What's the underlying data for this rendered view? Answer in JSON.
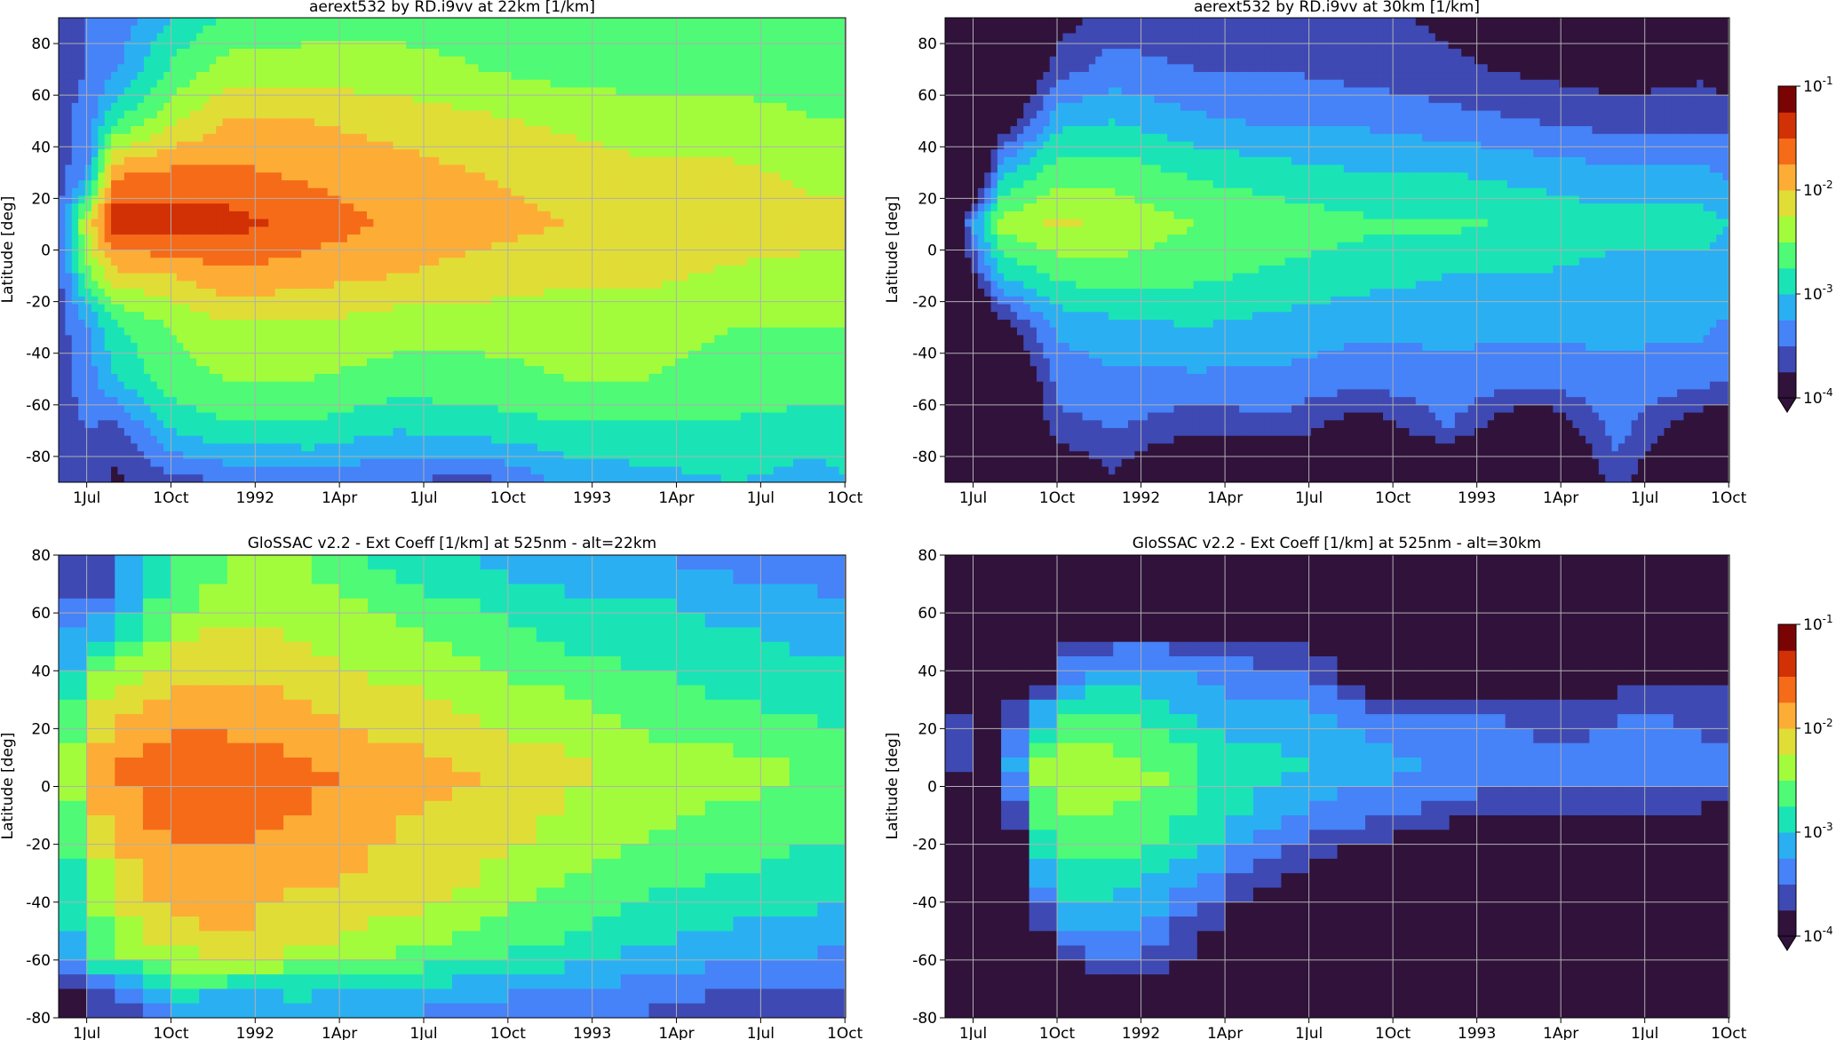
{
  "figure": {
    "colormap": [
      "#30123b",
      "#3e49b3",
      "#4682f8",
      "#2ab0f2",
      "#1ae4b6",
      "#4efa76",
      "#a2fc3c",
      "#e1dd37",
      "#fdad35",
      "#f66b18",
      "#d23105",
      "#7a0403"
    ],
    "under_color": "#30123b"
  },
  "chart_data": [
    {
      "type": "heatmap",
      "title": "aerext532 by RD.i9vv at 22km [1/km]",
      "ylabel": "Latitude [deg]",
      "xlabel": "",
      "ylim": [
        -90,
        90
      ],
      "yticks": [
        -80,
        -60,
        -40,
        -20,
        0,
        20,
        40,
        60,
        80
      ],
      "xticklabels": [
        "1Jul",
        "1Oct",
        "1992",
        "1Apr",
        "1Jul",
        "1Oct",
        "1993",
        "1Apr",
        "1Jul",
        "1Oct"
      ],
      "xrange": [
        "1991-06-01",
        "1993-10-01"
      ],
      "grid": true,
      "colorbar": false,
      "value_unit": "log10 extinction [1/km]",
      "field": {
        "time_months": [
          0,
          1,
          2,
          4,
          6,
          9,
          12,
          15,
          18,
          21,
          24,
          27,
          28
        ],
        "latitude": [
          -90,
          -70,
          -50,
          -30,
          -10,
          10,
          30,
          50,
          70,
          90
        ],
        "values": [
          [
            -3.6,
            -3.6,
            -3.6,
            -3.6,
            -3.6,
            -3.6,
            -3.6,
            -3.6,
            -3.6,
            -3.6
          ],
          [
            -3.5,
            -3.5,
            -3.4,
            -3.3,
            -2.6,
            -2.2,
            -3.3,
            -3.4,
            -3.5,
            -3.5
          ],
          [
            -3.8,
            -3.6,
            -3.0,
            -2.8,
            -2.1,
            -1.3,
            -1.8,
            -2.8,
            -3.3,
            -3.4
          ],
          [
            -3.6,
            -3.0,
            -2.6,
            -2.5,
            -2.0,
            -1.4,
            -1.7,
            -2.3,
            -2.7,
            -3.0
          ],
          [
            -3.5,
            -2.8,
            -2.5,
            -2.3,
            -1.8,
            -1.4,
            -1.7,
            -2.0,
            -2.4,
            -2.7
          ],
          [
            -3.4,
            -2.8,
            -2.5,
            -2.3,
            -1.9,
            -1.6,
            -1.8,
            -2.0,
            -2.4,
            -2.6
          ],
          [
            -3.5,
            -3.0,
            -2.6,
            -2.4,
            -2.0,
            -1.8,
            -1.9,
            -2.1,
            -2.4,
            -2.6
          ],
          [
            -3.6,
            -2.9,
            -2.6,
            -2.4,
            -2.1,
            -1.9,
            -2.0,
            -2.2,
            -2.5,
            -2.6
          ],
          [
            -3.2,
            -2.8,
            -2.5,
            -2.4,
            -2.2,
            -2.0,
            -2.1,
            -2.3,
            -2.6,
            -2.7
          ],
          [
            -3.1,
            -2.8,
            -2.5,
            -2.4,
            -2.2,
            -2.0,
            -2.2,
            -2.4,
            -2.6,
            -2.7
          ],
          [
            -3.0,
            -2.8,
            -2.6,
            -2.5,
            -2.3,
            -2.1,
            -2.2,
            -2.4,
            -2.6,
            -2.7
          ],
          [
            -3.1,
            -2.9,
            -2.6,
            -2.5,
            -2.3,
            -2.2,
            -2.3,
            -2.5,
            -2.6,
            -2.7
          ],
          [
            -3.0,
            -2.9,
            -2.6,
            -2.5,
            -2.3,
            -2.2,
            -2.3,
            -2.5,
            -2.6,
            -2.7
          ]
        ]
      }
    },
    {
      "type": "heatmap",
      "title": "aerext532 by RD.i9vv at 30km [1/km]",
      "ylabel": "Latitude [deg]",
      "xlabel": "",
      "ylim": [
        -90,
        90
      ],
      "yticks": [
        -80,
        -60,
        -40,
        -20,
        0,
        20,
        40,
        60,
        80
      ],
      "xticklabels": [
        "1Jul",
        "1Oct",
        "1992",
        "1Apr",
        "1Jul",
        "1Oct",
        "1993",
        "1Apr",
        "1Jul",
        "1Oct"
      ],
      "xrange": [
        "1991-06-01",
        "1993-10-01"
      ],
      "grid": true,
      "colorbar": true,
      "colorbar_ticks": [
        "10",
        "10",
        "10",
        "10"
      ],
      "colorbar_exponents": [
        "-1",
        "-2",
        "-3",
        "-4"
      ],
      "colorbar_range": [
        -4,
        -1
      ],
      "value_unit": "log10 extinction [1/km]",
      "field": {
        "time_months": [
          0,
          1,
          2,
          4,
          6,
          9,
          12,
          15,
          18,
          21,
          24,
          27,
          28
        ],
        "latitude": [
          -90,
          -70,
          -50,
          -30,
          -10,
          10,
          30,
          50,
          70,
          90
        ],
        "values": [
          [
            -4.6,
            -4.6,
            -4.6,
            -4.6,
            -4.6,
            -4.6,
            -4.6,
            -4.6,
            -4.6,
            -4.6
          ],
          [
            -4.6,
            -4.6,
            -4.6,
            -4.5,
            -3.8,
            -3.2,
            -4.5,
            -4.6,
            -4.6,
            -4.6
          ],
          [
            -4.6,
            -4.6,
            -4.5,
            -3.9,
            -3.0,
            -2.4,
            -3.1,
            -4.0,
            -4.5,
            -4.6
          ],
          [
            -4.2,
            -3.6,
            -3.4,
            -3.2,
            -2.7,
            -2.2,
            -2.6,
            -3.1,
            -3.6,
            -3.9
          ],
          [
            -3.8,
            -3.5,
            -3.3,
            -3.1,
            -2.6,
            -2.3,
            -2.6,
            -3.0,
            -3.4,
            -3.6
          ],
          [
            -4.5,
            -3.7,
            -3.3,
            -3.0,
            -2.7,
            -2.5,
            -2.8,
            -3.2,
            -3.5,
            -3.7
          ],
          [
            -4.6,
            -3.6,
            -3.3,
            -3.1,
            -2.8,
            -2.6,
            -2.9,
            -3.3,
            -3.5,
            -3.6
          ],
          [
            -4.6,
            -4.0,
            -3.4,
            -3.2,
            -2.9,
            -2.7,
            -3.0,
            -3.3,
            -3.6,
            -3.7
          ],
          [
            -4.6,
            -3.5,
            -3.3,
            -3.2,
            -3.0,
            -2.7,
            -3.0,
            -3.4,
            -3.7,
            -3.8
          ],
          [
            -4.6,
            -4.2,
            -3.4,
            -3.2,
            -3.0,
            -2.8,
            -3.1,
            -3.5,
            -3.8,
            -3.9
          ],
          [
            -3.6,
            -3.4,
            -3.3,
            -3.2,
            -3.1,
            -2.9,
            -3.2,
            -3.6,
            -3.9,
            -4.0
          ],
          [
            -4.6,
            -4.0,
            -3.4,
            -3.2,
            -3.1,
            -2.9,
            -3.2,
            -3.6,
            -3.8,
            -3.9
          ],
          [
            -4.6,
            -4.1,
            -3.5,
            -3.3,
            -3.1,
            -3.0,
            -3.3,
            -3.6,
            -3.9,
            -4.0
          ]
        ]
      }
    },
    {
      "type": "heatmap",
      "title": "GloSSAC v2.2 - Ext Coeff [1/km] at 525nm - alt=22km",
      "ylabel": "Latitude [deg]",
      "xlabel": "",
      "ylim": [
        -80,
        80
      ],
      "yticks": [
        -80,
        -60,
        -40,
        -20,
        0,
        20,
        40,
        60,
        80
      ],
      "xticklabels": [
        "1Jul",
        "1Oct",
        "1992",
        "1Apr",
        "1Jul",
        "1Oct",
        "1993",
        "1Apr",
        "1Jul",
        "1Oct"
      ],
      "xrange": [
        "1991-06-01",
        "1993-10-01"
      ],
      "grid": true,
      "colorbar": false,
      "value_unit": "log10 extinction [1/km]",
      "field": {
        "time_months": [
          0,
          1,
          2,
          3,
          4,
          6,
          9,
          12,
          15,
          18,
          21,
          24,
          27,
          28
        ],
        "latitude": [
          -75,
          -55,
          -35,
          -15,
          5,
          25,
          45,
          65,
          75
        ],
        "values": [
          [
            -4.2,
            -3.3,
            -3.2,
            -3.0,
            -3.0,
            -3.0,
            -3.4,
            -3.4,
            -3.4
          ],
          [
            -3.8,
            -2.8,
            -2.6,
            -2.2,
            -1.8,
            -2.2,
            -2.8,
            -3.6,
            -3.6
          ],
          [
            -3.5,
            -2.4,
            -2.2,
            -1.9,
            -1.8,
            -2.1,
            -2.6,
            -3.5,
            -3.5
          ],
          [
            -3.6,
            -2.3,
            -2.0,
            -1.8,
            -1.6,
            -1.9,
            -2.5,
            -3.0,
            -3.0
          ],
          [
            -3.0,
            -2.2,
            -1.9,
            -1.7,
            -1.6,
            -1.8,
            -2.2,
            -2.6,
            -2.7
          ],
          [
            -3.2,
            -2.0,
            -1.9,
            -1.7,
            -1.6,
            -1.8,
            -2.1,
            -2.4,
            -2.5
          ],
          [
            -3.1,
            -2.2,
            -2.0,
            -1.8,
            -1.7,
            -2.0,
            -2.2,
            -2.4,
            -2.5
          ],
          [
            -3.2,
            -2.4,
            -2.1,
            -2.0,
            -1.9,
            -2.1,
            -2.4,
            -2.6,
            -2.8
          ],
          [
            -3.3,
            -2.6,
            -2.3,
            -2.1,
            -2.0,
            -2.3,
            -2.5,
            -2.8,
            -3.0
          ],
          [
            -3.4,
            -2.8,
            -2.5,
            -2.3,
            -2.2,
            -2.4,
            -2.7,
            -3.0,
            -3.1
          ],
          [
            -3.5,
            -3.0,
            -2.7,
            -2.5,
            -2.3,
            -2.6,
            -2.8,
            -3.0,
            -3.2
          ],
          [
            -3.6,
            -3.1,
            -2.8,
            -2.6,
            -2.4,
            -2.7,
            -2.9,
            -3.1,
            -3.3
          ],
          [
            -3.6,
            -3.2,
            -2.9,
            -2.7,
            -2.5,
            -2.8,
            -3.0,
            -3.2,
            -3.4
          ],
          [
            -3.7,
            -3.2,
            -2.9,
            -2.7,
            -2.5,
            -2.8,
            -3.0,
            -3.3,
            -3.5
          ]
        ]
      }
    },
    {
      "type": "heatmap",
      "title": "GloSSAC v2.2 - Ext Coeff [1/km] at 525nm - alt=30km",
      "ylabel": "Latitude [deg]",
      "xlabel": "",
      "ylim": [
        -80,
        80
      ],
      "yticks": [
        -80,
        -60,
        -40,
        -20,
        0,
        20,
        40,
        60,
        80
      ],
      "xticklabels": [
        "1Jul",
        "1Oct",
        "1992",
        "1Apr",
        "1Jul",
        "1Oct",
        "1993",
        "1Apr",
        "1Jul",
        "1Oct"
      ],
      "xrange": [
        "1991-06-01",
        "1993-10-01"
      ],
      "grid": true,
      "colorbar": true,
      "colorbar_ticks": [
        "10",
        "10",
        "10",
        "10"
      ],
      "colorbar_exponents": [
        "-1",
        "-2",
        "-3",
        "-4"
      ],
      "colorbar_range": [
        -4,
        -1
      ],
      "value_unit": "log10 extinction [1/km]",
      "field": {
        "time_months": [
          0,
          1,
          2,
          3,
          4,
          5,
          7,
          10,
          13,
          16,
          19,
          22,
          25,
          28
        ],
        "latitude": [
          -75,
          -55,
          -35,
          -15,
          5,
          25,
          45,
          65,
          75
        ],
        "values": [
          [
            -4.6,
            -4.6,
            -4.6,
            -4.6,
            -3.6,
            -3.6,
            -4.6,
            -4.6,
            -4.6
          ],
          [
            -4.6,
            -4.6,
            -4.6,
            -4.6,
            -3.7,
            -3.7,
            -4.6,
            -4.6,
            -4.6
          ],
          [
            -4.6,
            -4.6,
            -4.6,
            -4.6,
            -3.9,
            -3.9,
            -4.6,
            -4.6,
            -4.6
          ],
          [
            -4.6,
            -4.6,
            -3.5,
            -3.0,
            -2.5,
            -3.3,
            -4.6,
            -4.6,
            -4.6
          ],
          [
            -4.6,
            -3.4,
            -3.0,
            -2.6,
            -2.3,
            -2.9,
            -3.8,
            -4.6,
            -4.6
          ],
          [
            -4.6,
            -3.3,
            -2.9,
            -2.5,
            -2.3,
            -2.7,
            -3.4,
            -4.6,
            -4.6
          ],
          [
            -4.0,
            -3.3,
            -3.0,
            -2.6,
            -2.4,
            -2.8,
            -3.3,
            -4.6,
            -4.6
          ],
          [
            -4.6,
            -4.0,
            -3.5,
            -3.0,
            -2.8,
            -3.1,
            -3.5,
            -4.6,
            -4.6
          ],
          [
            -4.6,
            -4.6,
            -4.0,
            -3.4,
            -3.0,
            -3.2,
            -3.6,
            -4.6,
            -4.6
          ],
          [
            -4.6,
            -4.6,
            -4.6,
            -3.6,
            -3.2,
            -3.4,
            -4.6,
            -4.6,
            -4.6
          ],
          [
            -4.6,
            -4.6,
            -4.6,
            -3.9,
            -3.3,
            -3.5,
            -4.6,
            -4.6,
            -4.6
          ],
          [
            -4.6,
            -4.6,
            -4.6,
            -3.8,
            -3.4,
            -3.6,
            -4.6,
            -4.6,
            -4.6
          ],
          [
            -4.6,
            -4.6,
            -4.6,
            -3.9,
            -3.3,
            -3.5,
            -3.9,
            -4.6,
            -4.6
          ],
          [
            -4.6,
            -4.6,
            -4.6,
            -4.0,
            -3.4,
            -3.6,
            -4.0,
            -4.6,
            -4.6
          ]
        ]
      }
    }
  ]
}
